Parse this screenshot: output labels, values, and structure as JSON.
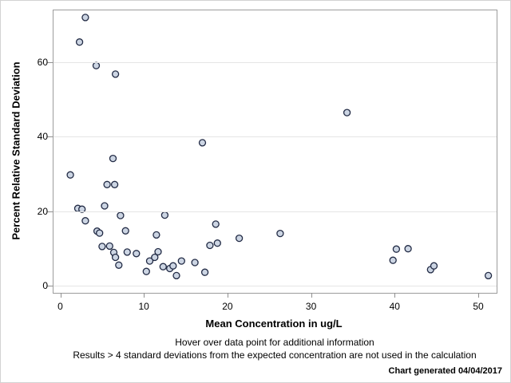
{
  "chart_data": {
    "type": "scatter",
    "xlabel": "Mean Concentration in ug/L",
    "ylabel": "Percent Relative Standard Deviation",
    "xlim": [
      0,
      53
    ],
    "ylim": [
      0,
      75.5
    ],
    "x_ticks": [
      0,
      10,
      20,
      30,
      40,
      50
    ],
    "y_ticks": [
      0,
      20,
      40,
      60
    ],
    "grid": "horizontal-only",
    "legend": "none",
    "points": [
      [
        3.0,
        71.9
      ],
      [
        2.3,
        65.3
      ],
      [
        4.3,
        59.0
      ],
      [
        6.6,
        56.7
      ],
      [
        34.3,
        46.4
      ],
      [
        17.0,
        38.3
      ],
      [
        6.3,
        34.1
      ],
      [
        1.2,
        29.7
      ],
      [
        5.6,
        27.1
      ],
      [
        6.5,
        27.1
      ],
      [
        2.1,
        20.7
      ],
      [
        2.6,
        20.5
      ],
      [
        5.3,
        21.4
      ],
      [
        7.2,
        18.8
      ],
      [
        3.0,
        17.4
      ],
      [
        4.4,
        14.6
      ],
      [
        4.7,
        14.1
      ],
      [
        7.8,
        14.7
      ],
      [
        5.0,
        10.5
      ],
      [
        5.9,
        10.6
      ],
      [
        6.4,
        8.9
      ],
      [
        6.6,
        7.6
      ],
      [
        7.0,
        5.5
      ],
      [
        8.0,
        9.0
      ],
      [
        9.1,
        8.6
      ],
      [
        10.3,
        3.8
      ],
      [
        10.7,
        6.6
      ],
      [
        11.3,
        7.6
      ],
      [
        11.7,
        9.1
      ],
      [
        11.5,
        13.6
      ],
      [
        12.5,
        18.9
      ],
      [
        12.3,
        5.1
      ],
      [
        13.1,
        4.6
      ],
      [
        13.5,
        5.3
      ],
      [
        13.9,
        2.7
      ],
      [
        14.5,
        6.6
      ],
      [
        16.1,
        6.2
      ],
      [
        17.3,
        3.6
      ],
      [
        17.9,
        10.8
      ],
      [
        18.8,
        11.4
      ],
      [
        18.6,
        16.5
      ],
      [
        21.4,
        12.7
      ],
      [
        26.3,
        14.0
      ],
      [
        40.2,
        9.8
      ],
      [
        41.6,
        9.9
      ],
      [
        39.8,
        6.8
      ],
      [
        44.3,
        4.3
      ],
      [
        44.7,
        5.3
      ],
      [
        51.2,
        2.7
      ]
    ]
  },
  "footnotes": {
    "hover": "Hover over data point for additional information",
    "results": "Results > 4 standard deviations from the expected concentration are not used in the calculation",
    "generated": "Chart generated 04/04/2017"
  },
  "colors": {
    "marker_fill": "#ccd5e3",
    "marker_stroke": "#222b45",
    "gridline": "#e5e5e5",
    "plot_border": "#9c9c9c",
    "tick": "#8f8f8f",
    "text": "#000000"
  }
}
